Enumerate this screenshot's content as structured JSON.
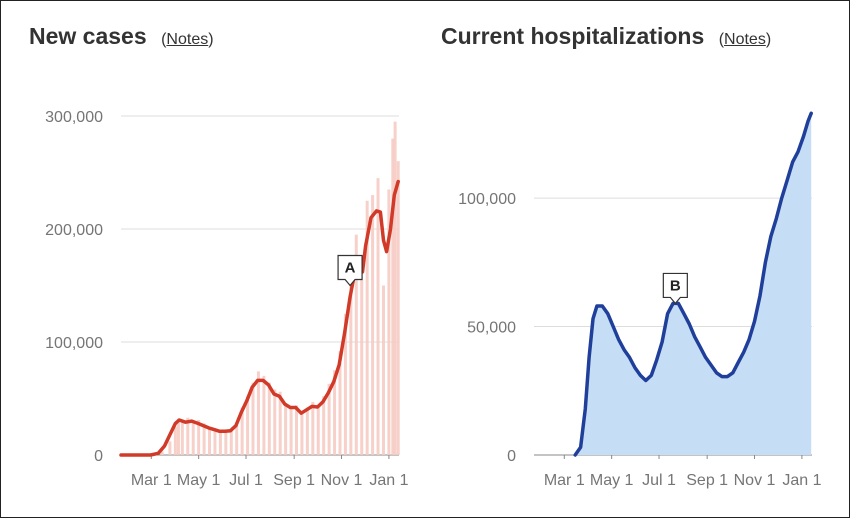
{
  "colors": {
    "cases_line": "#d13a28",
    "cases_bars": "#f6cbc3",
    "hosp_line": "#1f3f9a",
    "hosp_fill": "#c5ddf5",
    "hosp_bars": "#d7e7f8",
    "grid": "#dddddd",
    "axis": "#888888",
    "text": "#333333",
    "tick_text": "#757575"
  },
  "chart_data": [
    {
      "type": "area",
      "title": "New cases",
      "notes_label": "Notes",
      "xlabel": "",
      "ylabel": "",
      "x_ticks": [
        "Mar 1",
        "May 1",
        "Jul 1",
        "Sep 1",
        "Nov 1",
        "Jan 1"
      ],
      "y_ticks": [
        "0",
        "100,000",
        "200,000",
        "300,000"
      ],
      "y_tick_values": [
        0,
        100000,
        200000,
        300000
      ],
      "ylim": [
        0,
        300000
      ],
      "xlim": [
        "2020-01-22",
        "2021-01-14"
      ],
      "grid": true,
      "annotations": [
        {
          "label": "A",
          "x": "2020-11-12",
          "y": 150000
        }
      ],
      "series": [
        {
          "style": "bars",
          "points": [
            [
              "2020-03-01",
              100
            ],
            [
              "2020-03-15",
              3000
            ],
            [
              "2020-03-25",
              12000
            ],
            [
              "2020-04-01",
              25000
            ],
            [
              "2020-04-05",
              32000
            ],
            [
              "2020-04-10",
              31000
            ],
            [
              "2020-04-17",
              33000
            ],
            [
              "2020-04-24",
              30000
            ],
            [
              "2020-05-01",
              31000
            ],
            [
              "2020-05-08",
              28000
            ],
            [
              "2020-05-15",
              24000
            ],
            [
              "2020-05-22",
              22000
            ],
            [
              "2020-05-29",
              22000
            ],
            [
              "2020-06-05",
              21000
            ],
            [
              "2020-06-12",
              23000
            ],
            [
              "2020-06-19",
              28000
            ],
            [
              "2020-06-26",
              42000
            ],
            [
              "2020-07-03",
              52000
            ],
            [
              "2020-07-10",
              64000
            ],
            [
              "2020-07-17",
              74000
            ],
            [
              "2020-07-24",
              70000
            ],
            [
              "2020-07-31",
              64000
            ],
            [
              "2020-08-07",
              58000
            ],
            [
              "2020-08-14",
              56000
            ],
            [
              "2020-08-21",
              45000
            ],
            [
              "2020-08-28",
              42000
            ],
            [
              "2020-09-04",
              44000
            ],
            [
              "2020-09-11",
              38000
            ],
            [
              "2020-09-18",
              42000
            ],
            [
              "2020-09-25",
              47000
            ],
            [
              "2020-10-02",
              44000
            ],
            [
              "2020-10-09",
              52000
            ],
            [
              "2020-10-16",
              63000
            ],
            [
              "2020-10-23",
              75000
            ],
            [
              "2020-10-30",
              92000
            ],
            [
              "2020-11-06",
              125000
            ],
            [
              "2020-11-13",
              170000
            ],
            [
              "2020-11-20",
              195000
            ],
            [
              "2020-11-27",
              155000
            ],
            [
              "2020-12-04",
              225000
            ],
            [
              "2020-12-11",
              230000
            ],
            [
              "2020-12-18",
              245000
            ],
            [
              "2020-12-25",
              150000
            ],
            [
              "2021-01-01",
              235000
            ],
            [
              "2021-01-06",
              280000
            ],
            [
              "2021-01-09",
              295000
            ],
            [
              "2021-01-13",
              260000
            ]
          ]
        },
        {
          "style": "line",
          "points": [
            [
              "2020-01-22",
              0
            ],
            [
              "2020-02-29",
              0
            ],
            [
              "2020-03-10",
              1500
            ],
            [
              "2020-03-18",
              8000
            ],
            [
              "2020-03-25",
              18000
            ],
            [
              "2020-04-01",
              28000
            ],
            [
              "2020-04-06",
              31000
            ],
            [
              "2020-04-14",
              29000
            ],
            [
              "2020-04-22",
              30000
            ],
            [
              "2020-04-30",
              28000
            ],
            [
              "2020-05-07",
              26000
            ],
            [
              "2020-05-14",
              24000
            ],
            [
              "2020-05-21",
              22500
            ],
            [
              "2020-05-28",
              21000
            ],
            [
              "2020-06-04",
              21000
            ],
            [
              "2020-06-11",
              21500
            ],
            [
              "2020-06-18",
              26000
            ],
            [
              "2020-06-25",
              38000
            ],
            [
              "2020-07-02",
              48000
            ],
            [
              "2020-07-09",
              60000
            ],
            [
              "2020-07-16",
              66000
            ],
            [
              "2020-07-23",
              66000
            ],
            [
              "2020-07-30",
              62000
            ],
            [
              "2020-08-06",
              54000
            ],
            [
              "2020-08-13",
              52000
            ],
            [
              "2020-08-20",
              45000
            ],
            [
              "2020-08-27",
              42000
            ],
            [
              "2020-09-03",
              42000
            ],
            [
              "2020-09-10",
              37000
            ],
            [
              "2020-09-17",
              40000
            ],
            [
              "2020-09-24",
              43000
            ],
            [
              "2020-10-01",
              42500
            ],
            [
              "2020-10-08",
              47000
            ],
            [
              "2020-10-15",
              55000
            ],
            [
              "2020-10-22",
              65000
            ],
            [
              "2020-10-29",
              80000
            ],
            [
              "2020-11-05",
              108000
            ],
            [
              "2020-11-12",
              140000
            ],
            [
              "2020-11-19",
              165000
            ],
            [
              "2020-11-24",
              174000
            ],
            [
              "2020-11-28",
              162000
            ],
            [
              "2020-12-02",
              185000
            ],
            [
              "2020-12-09",
              210000
            ],
            [
              "2020-12-16",
              216000
            ],
            [
              "2020-12-21",
              215000
            ],
            [
              "2020-12-25",
              190000
            ],
            [
              "2020-12-29",
              180000
            ],
            [
              "2021-01-03",
              200000
            ],
            [
              "2021-01-08",
              230000
            ],
            [
              "2021-01-13",
              242000
            ]
          ]
        }
      ]
    },
    {
      "type": "area",
      "title": "Current hospitalizations",
      "notes_label": "Notes",
      "xlabel": "",
      "ylabel": "",
      "x_ticks": [
        "Mar 1",
        "May 1",
        "Jul 1",
        "Sep 1",
        "Nov 1",
        "Jan 1"
      ],
      "y_ticks": [
        "0",
        "50,000",
        "100,000"
      ],
      "y_tick_values": [
        0,
        50000,
        100000
      ],
      "ylim": [
        0,
        130000
      ],
      "xlim": [
        "2020-01-22",
        "2021-01-14"
      ],
      "grid": true,
      "annotations": [
        {
          "label": "B",
          "x": "2020-07-22",
          "y": 59000
        }
      ],
      "series": [
        {
          "style": "area",
          "points": [
            [
              "2020-03-15",
              0
            ],
            [
              "2020-03-22",
              3000
            ],
            [
              "2020-03-28",
              18000
            ],
            [
              "2020-04-02",
              38000
            ],
            [
              "2020-04-07",
              53000
            ],
            [
              "2020-04-12",
              58000
            ],
            [
              "2020-04-19",
              58000
            ],
            [
              "2020-04-26",
              55000
            ],
            [
              "2020-05-03",
              50000
            ],
            [
              "2020-05-10",
              45000
            ],
            [
              "2020-05-17",
              41000
            ],
            [
              "2020-05-24",
              38000
            ],
            [
              "2020-05-31",
              34000
            ],
            [
              "2020-06-07",
              31000
            ],
            [
              "2020-06-14",
              29000
            ],
            [
              "2020-06-21",
              31000
            ],
            [
              "2020-06-28",
              37000
            ],
            [
              "2020-07-05",
              44000
            ],
            [
              "2020-07-12",
              55000
            ],
            [
              "2020-07-19",
              59000
            ],
            [
              "2020-07-26",
              59000
            ],
            [
              "2020-08-02",
              55000
            ],
            [
              "2020-08-09",
              51000
            ],
            [
              "2020-08-16",
              46000
            ],
            [
              "2020-08-23",
              42000
            ],
            [
              "2020-08-30",
              38000
            ],
            [
              "2020-09-06",
              35000
            ],
            [
              "2020-09-13",
              32000
            ],
            [
              "2020-09-20",
              30500
            ],
            [
              "2020-09-27",
              30500
            ],
            [
              "2020-10-04",
              32000
            ],
            [
              "2020-10-11",
              36000
            ],
            [
              "2020-10-18",
              40000
            ],
            [
              "2020-10-25",
              45000
            ],
            [
              "2020-11-01",
              52000
            ],
            [
              "2020-11-08",
              62000
            ],
            [
              "2020-11-15",
              75000
            ],
            [
              "2020-11-22",
              85000
            ],
            [
              "2020-11-29",
              92000
            ],
            [
              "2020-12-06",
              100000
            ],
            [
              "2020-12-13",
              107000
            ],
            [
              "2020-12-20",
              114000
            ],
            [
              "2020-12-27",
              118000
            ],
            [
              "2021-01-03",
              124000
            ],
            [
              "2021-01-09",
              130000
            ],
            [
              "2021-01-13",
              133000
            ]
          ]
        }
      ]
    }
  ]
}
